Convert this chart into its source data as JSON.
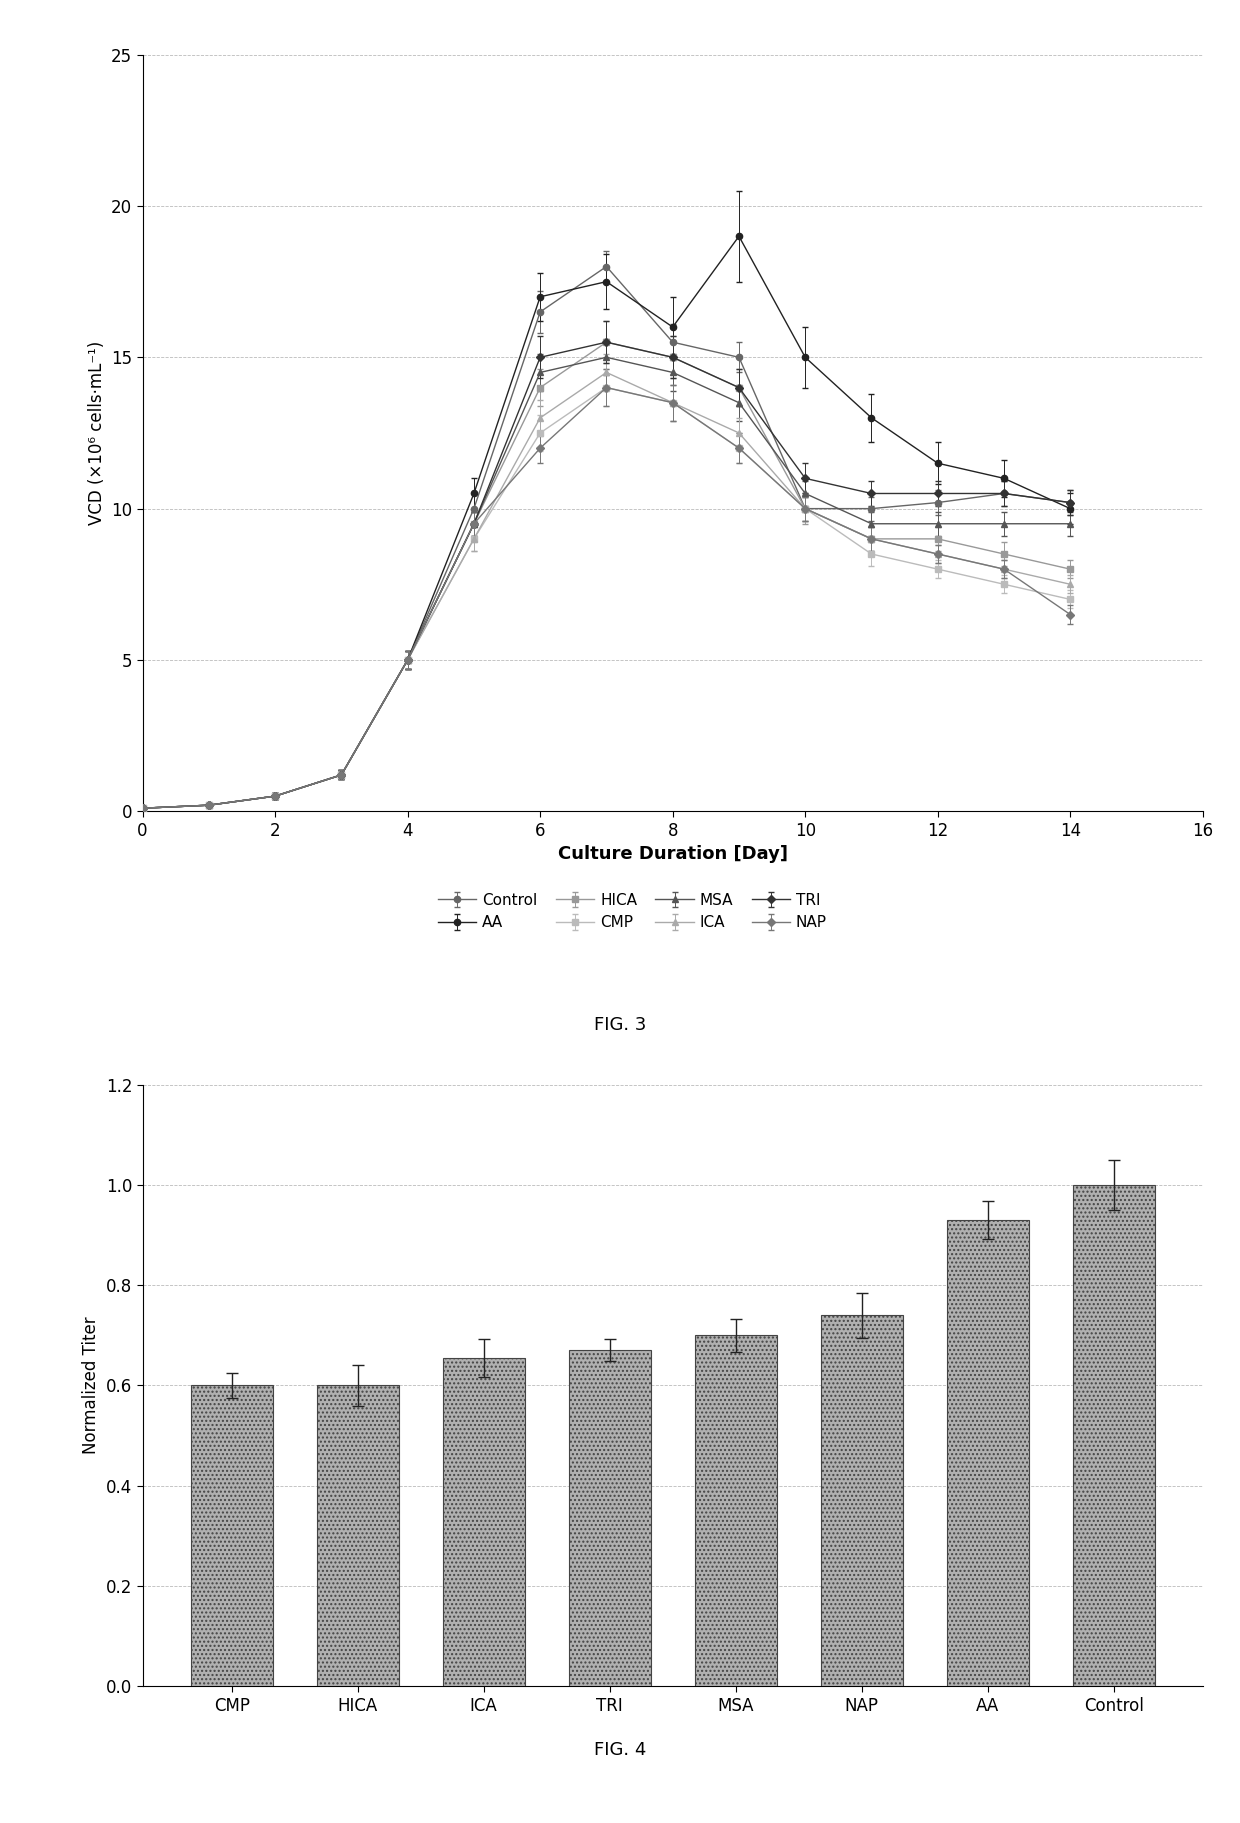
{
  "fig3": {
    "xlabel": "Culture Duration [Day]",
    "ylabel": "VCD (×10⁶ cells·mL⁻¹)",
    "xlim": [
      0,
      16
    ],
    "ylim": [
      0,
      25
    ],
    "yticks": [
      0,
      5,
      10,
      15,
      20,
      25
    ],
    "xticks": [
      0,
      2,
      4,
      6,
      8,
      10,
      12,
      14,
      16
    ],
    "series": {
      "Control": {
        "x": [
          0,
          1,
          2,
          3,
          4,
          5,
          6,
          7,
          8,
          9,
          10,
          11,
          12,
          13,
          14
        ],
        "y": [
          0.1,
          0.2,
          0.5,
          1.2,
          5.0,
          10.0,
          16.5,
          18.0,
          15.5,
          15.0,
          10.0,
          10.0,
          10.2,
          10.5,
          10.2
        ],
        "yerr": [
          0.05,
          0.05,
          0.1,
          0.15,
          0.3,
          0.5,
          0.7,
          0.5,
          0.6,
          0.5,
          0.4,
          0.4,
          0.4,
          0.4,
          0.4
        ],
        "color": "#666666",
        "marker": "o",
        "linestyle": "-"
      },
      "AA": {
        "x": [
          0,
          1,
          2,
          3,
          4,
          5,
          6,
          7,
          8,
          9,
          10,
          11,
          12,
          13,
          14
        ],
        "y": [
          0.1,
          0.2,
          0.5,
          1.2,
          5.0,
          10.5,
          17.0,
          17.5,
          16.0,
          19.0,
          15.0,
          13.0,
          11.5,
          11.0,
          10.0
        ],
        "yerr": [
          0.05,
          0.05,
          0.1,
          0.15,
          0.3,
          0.5,
          0.8,
          0.9,
          1.0,
          1.5,
          1.0,
          0.8,
          0.7,
          0.6,
          0.5
        ],
        "color": "#222222",
        "marker": "o",
        "linestyle": "-"
      },
      "HICA": {
        "x": [
          0,
          1,
          2,
          3,
          4,
          5,
          6,
          7,
          8,
          9,
          10,
          11,
          12,
          13,
          14
        ],
        "y": [
          0.1,
          0.2,
          0.5,
          1.2,
          5.0,
          9.5,
          14.0,
          15.5,
          15.0,
          14.0,
          10.0,
          9.0,
          9.0,
          8.5,
          8.0
        ],
        "yerr": [
          0.05,
          0.05,
          0.1,
          0.15,
          0.3,
          0.5,
          0.6,
          0.7,
          0.7,
          0.6,
          0.5,
          0.4,
          0.4,
          0.4,
          0.3
        ],
        "color": "#999999",
        "marker": "s",
        "linestyle": "-"
      },
      "CMP": {
        "x": [
          0,
          1,
          2,
          3,
          4,
          5,
          6,
          7,
          8,
          9,
          10,
          11,
          12,
          13,
          14
        ],
        "y": [
          0.1,
          0.2,
          0.5,
          1.2,
          5.0,
          9.0,
          12.5,
          14.0,
          13.5,
          12.0,
          10.0,
          8.5,
          8.0,
          7.5,
          7.0
        ],
        "yerr": [
          0.05,
          0.05,
          0.1,
          0.15,
          0.3,
          0.4,
          0.6,
          0.6,
          0.6,
          0.5,
          0.4,
          0.4,
          0.3,
          0.3,
          0.3
        ],
        "color": "#bbbbbb",
        "marker": "s",
        "linestyle": "-"
      },
      "MSA": {
        "x": [
          0,
          1,
          2,
          3,
          4,
          5,
          6,
          7,
          8,
          9,
          10,
          11,
          12,
          13,
          14
        ],
        "y": [
          0.1,
          0.2,
          0.5,
          1.2,
          5.0,
          9.5,
          14.5,
          15.0,
          14.5,
          13.5,
          10.5,
          9.5,
          9.5,
          9.5,
          9.5
        ],
        "yerr": [
          0.05,
          0.05,
          0.1,
          0.15,
          0.3,
          0.4,
          0.6,
          0.6,
          0.6,
          0.6,
          0.4,
          0.4,
          0.4,
          0.4,
          0.4
        ],
        "color": "#555555",
        "marker": "^",
        "linestyle": "-"
      },
      "ICA": {
        "x": [
          0,
          1,
          2,
          3,
          4,
          5,
          6,
          7,
          8,
          9,
          10,
          11,
          12,
          13,
          14
        ],
        "y": [
          0.1,
          0.2,
          0.5,
          1.2,
          5.0,
          9.0,
          13.0,
          14.5,
          13.5,
          12.5,
          10.0,
          9.0,
          8.5,
          8.0,
          7.5
        ],
        "yerr": [
          0.05,
          0.05,
          0.1,
          0.15,
          0.3,
          0.4,
          0.6,
          0.6,
          0.6,
          0.5,
          0.4,
          0.4,
          0.3,
          0.3,
          0.3
        ],
        "color": "#aaaaaa",
        "marker": "^",
        "linestyle": "-"
      },
      "TRI": {
        "x": [
          0,
          1,
          2,
          3,
          4,
          5,
          6,
          7,
          8,
          9,
          10,
          11,
          12,
          13,
          14
        ],
        "y": [
          0.1,
          0.2,
          0.5,
          1.2,
          5.0,
          9.5,
          15.0,
          15.5,
          15.0,
          14.0,
          11.0,
          10.5,
          10.5,
          10.5,
          10.2
        ],
        "yerr": [
          0.05,
          0.05,
          0.1,
          0.15,
          0.3,
          0.4,
          0.7,
          0.7,
          0.7,
          0.6,
          0.5,
          0.4,
          0.4,
          0.4,
          0.4
        ],
        "color": "#333333",
        "marker": "D",
        "linestyle": "-"
      },
      "NAP": {
        "x": [
          0,
          1,
          2,
          3,
          4,
          5,
          6,
          7,
          8,
          9,
          10,
          11,
          12,
          13,
          14
        ],
        "y": [
          0.1,
          0.2,
          0.5,
          1.2,
          5.0,
          9.5,
          12.0,
          14.0,
          13.5,
          12.0,
          10.0,
          9.0,
          8.5,
          8.0,
          6.5
        ],
        "yerr": [
          0.05,
          0.05,
          0.1,
          0.15,
          0.3,
          0.4,
          0.5,
          0.6,
          0.6,
          0.5,
          0.4,
          0.4,
          0.3,
          0.3,
          0.3
        ],
        "color": "#777777",
        "marker": "D",
        "linestyle": "-"
      }
    },
    "legend_order": [
      "Control",
      "AA",
      "HICA",
      "CMP",
      "MSA",
      "ICA",
      "TRI",
      "NAP"
    ]
  },
  "fig4": {
    "ylabel": "Normalized Titer",
    "ylim": [
      0,
      1.2
    ],
    "yticks": [
      0,
      0.2,
      0.4,
      0.6,
      0.8,
      1.0,
      1.2
    ],
    "categories": [
      "CMP",
      "HICA",
      "ICA",
      "TRI",
      "MSA",
      "NAP",
      "AA",
      "Control"
    ],
    "values": [
      0.6,
      0.6,
      0.655,
      0.67,
      0.7,
      0.74,
      0.93,
      1.0
    ],
    "yerr": [
      0.025,
      0.04,
      0.038,
      0.022,
      0.033,
      0.045,
      0.038,
      0.05
    ],
    "bar_color": "#b0b0b0",
    "bar_edgecolor": "#444444"
  },
  "fig3_label": "FIG. 3",
  "fig4_label": "FIG. 4",
  "bg_color": "#ffffff",
  "text_color": "#000000"
}
